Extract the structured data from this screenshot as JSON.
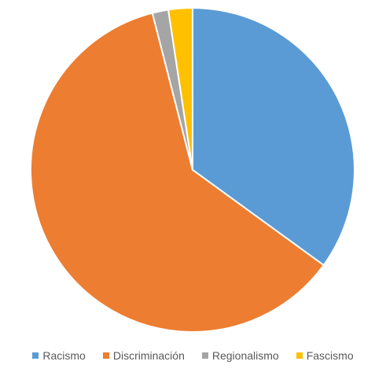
{
  "chart_data": {
    "type": "pie",
    "title": "",
    "categories": [
      "Racismo",
      "Discriminación",
      "Regionalismo",
      "Fascismo"
    ],
    "values": [
      35.0,
      61.0,
      1.6,
      2.4
    ],
    "colors": [
      "#5B9BD5",
      "#ED7D31",
      "#A5A5A5",
      "#FFC000"
    ],
    "start_angle_deg": 0,
    "direction": "clockwise",
    "slice_border_color": "#FFFFFF",
    "legend_position": "bottom"
  }
}
